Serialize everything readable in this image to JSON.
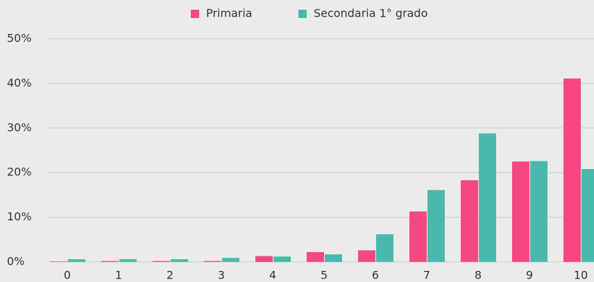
{
  "chart_data": {
    "type": "bar",
    "categories": [
      "0",
      "1",
      "2",
      "3",
      "4",
      "5",
      "6",
      "7",
      "8",
      "9",
      "10"
    ],
    "series": [
      {
        "name": "Primaria",
        "color": "#f54784",
        "values": [
          0.1,
          0.2,
          0.2,
          0.2,
          1.3,
          2.2,
          2.6,
          11.3,
          18.3,
          22.5,
          41.1
        ]
      },
      {
        "name": "Secondaria 1° grado",
        "color": "#4ab9ad",
        "values": [
          0.6,
          0.6,
          0.6,
          0.9,
          1.2,
          1.7,
          6.2,
          16.1,
          28.8,
          22.6,
          20.8
        ]
      }
    ],
    "ylim": [
      0,
      50
    ],
    "yticks": [
      {
        "value": 0,
        "label": "0%"
      },
      {
        "value": 10,
        "label": "10%"
      },
      {
        "value": 20,
        "label": "20%"
      },
      {
        "value": 30,
        "label": "30%"
      },
      {
        "value": 40,
        "label": "40%"
      },
      {
        "value": 50,
        "label": "50%"
      }
    ],
    "grid": true,
    "legend": "top"
  }
}
